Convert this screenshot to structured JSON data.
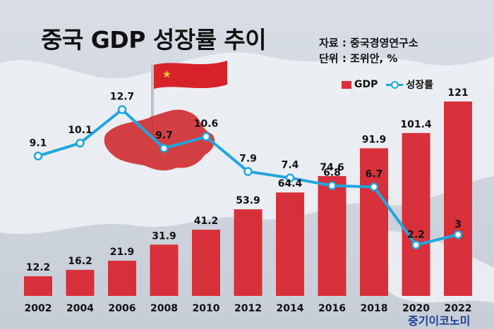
{
  "title": "중국 GDP 성장률 추이",
  "source_line": "자료 : 중국경영연구소",
  "unit_line": "단위 : 조위안, %",
  "brand": "중기이코노미",
  "colors": {
    "bar": "#d8303a",
    "line": "#20a6dc",
    "text": "#111111"
  },
  "chart_data": {
    "type": "bar",
    "categories": [
      "2002",
      "2004",
      "2006",
      "2008",
      "2010",
      "2012",
      "2014",
      "2016",
      "2018",
      "2020",
      "2022"
    ],
    "series": [
      {
        "name": "GDP",
        "type": "bar",
        "values": [
          12.2,
          16.2,
          21.9,
          31.9,
          41.2,
          53.9,
          64.4,
          74.6,
          91.9,
          101.4,
          121
        ]
      },
      {
        "name": "성장률",
        "type": "line",
        "values": [
          9.1,
          10.1,
          12.7,
          9.7,
          10.6,
          7.9,
          7.4,
          6.8,
          6.7,
          2.2,
          3
        ]
      }
    ],
    "title": "중국 GDP 성장률 추이",
    "legend": [
      "GDP",
      "성장률"
    ],
    "legend_position": "top-right",
    "grid": false
  }
}
